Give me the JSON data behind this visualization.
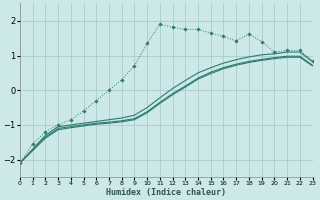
{
  "xlabel": "Humidex (Indice chaleur)",
  "bg_color": "#cce8e8",
  "grid_color": "#aacccc",
  "line_color": "#2e7b6e",
  "x_min": 0,
  "x_max": 23,
  "y_min": -2.5,
  "y_max": 2.5,
  "yticks": [
    -2,
    -1,
    0,
    1,
    2
  ],
  "xticks": [
    0,
    1,
    2,
    3,
    4,
    5,
    6,
    7,
    8,
    9,
    10,
    11,
    12,
    13,
    14,
    15,
    16,
    17,
    18,
    19,
    20,
    21,
    22,
    23
  ],
  "line1_x": [
    0,
    1,
    2,
    3,
    4,
    5,
    6,
    7,
    8,
    9,
    10,
    11,
    12,
    13,
    14,
    15,
    16,
    17,
    18,
    19,
    20,
    21,
    22,
    23
  ],
  "line1_y": [
    -2.1,
    -1.55,
    -1.2,
    -1.0,
    -0.85,
    -0.6,
    -0.3,
    -0.0,
    0.3,
    0.7,
    1.35,
    1.9,
    1.82,
    1.75,
    1.75,
    1.65,
    1.55,
    1.42,
    1.62,
    1.4,
    1.1,
    1.15,
    1.15,
    0.85
  ],
  "line2_x": [
    0,
    2,
    3,
    4,
    5,
    6,
    7,
    8,
    9,
    10,
    11,
    12,
    13,
    14,
    15,
    16,
    17,
    18,
    19,
    20,
    21,
    22,
    23
  ],
  "line2_y": [
    -2.1,
    -1.3,
    -1.05,
    -1.0,
    -0.95,
    -0.9,
    -0.85,
    -0.8,
    -0.72,
    -0.5,
    -0.22,
    0.05,
    0.28,
    0.5,
    0.65,
    0.78,
    0.88,
    0.96,
    1.02,
    1.05,
    1.1,
    1.1,
    0.82
  ],
  "line3_x": [
    0,
    2,
    3,
    4,
    5,
    6,
    7,
    8,
    9,
    10,
    11,
    12,
    13,
    14,
    15,
    16,
    17,
    18,
    19,
    20,
    21,
    22,
    23
  ],
  "line3_y": [
    -2.1,
    -1.35,
    -1.1,
    -1.05,
    -1.0,
    -0.95,
    -0.92,
    -0.88,
    -0.82,
    -0.62,
    -0.35,
    -0.1,
    0.12,
    0.35,
    0.52,
    0.65,
    0.75,
    0.83,
    0.89,
    0.94,
    0.98,
    0.98,
    0.72
  ],
  "line4_x": [
    0,
    2,
    3,
    4,
    5,
    6,
    7,
    8,
    9,
    10,
    11,
    12,
    13,
    14,
    15,
    16,
    17,
    18,
    19,
    20,
    21,
    22,
    23
  ],
  "line4_y": [
    -2.1,
    -1.38,
    -1.14,
    -1.08,
    -1.03,
    -0.98,
    -0.95,
    -0.91,
    -0.85,
    -0.65,
    -0.38,
    -0.13,
    0.09,
    0.32,
    0.48,
    0.62,
    0.72,
    0.8,
    0.86,
    0.91,
    0.95,
    0.95,
    0.7
  ]
}
